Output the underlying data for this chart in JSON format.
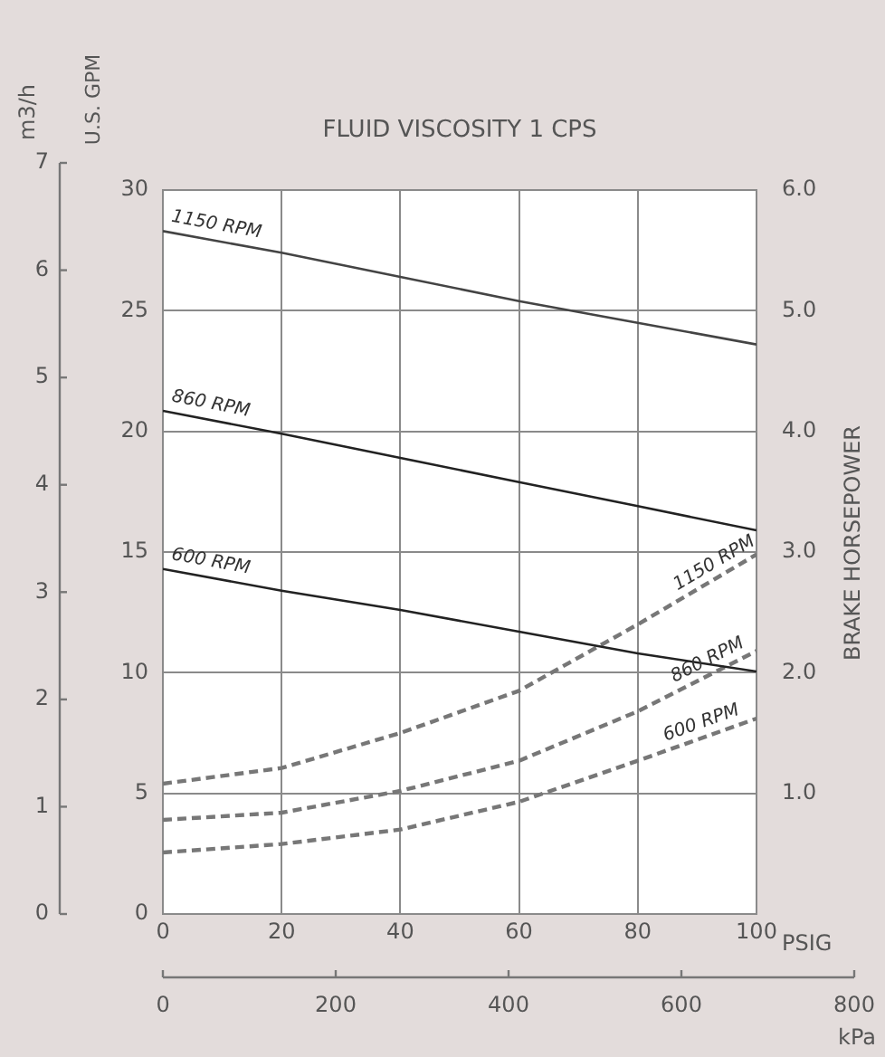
{
  "chart_data": {
    "type": "line",
    "title": "FLUID VISCOSITY 1 CPS",
    "xlabel": "PSIG",
    "ylabel": "U.S. GPM",
    "y2label": "BRAKE HORSEPOWER",
    "y3label": "m3/h",
    "x2label": "kPa",
    "x": [
      0,
      20,
      40,
      60,
      80,
      100
    ],
    "series": [
      {
        "name": "1150 RPM",
        "color": "#444444",
        "values": [
          28.3,
          27.4,
          26.4,
          25.4,
          24.5,
          23.6
        ],
        "line_style": "solid"
      },
      {
        "name": "860 RPM",
        "color": "#222222",
        "values": [
          20.85,
          19.9,
          18.9,
          17.9,
          16.9,
          15.9
        ],
        "line_style": "solid"
      },
      {
        "name": "600 RPM",
        "color": "#222222",
        "values": [
          14.3,
          13.4,
          12.6,
          11.7,
          10.8,
          10.05
        ],
        "line_style": "solid"
      },
      {
        "name": "1150 RPM",
        "color": "#777777",
        "values": [
          1.08,
          1.21,
          1.5,
          1.85,
          2.4,
          2.98
        ],
        "axis": "y2",
        "line_style": "dashed"
      },
      {
        "name": "860 RPM",
        "color": "#777777",
        "values": [
          0.78,
          0.84,
          1.02,
          1.27,
          1.68,
          2.18
        ],
        "axis": "y2",
        "line_style": "dashed"
      },
      {
        "name": "600 RPM",
        "color": "#777777",
        "values": [
          0.51,
          0.58,
          0.7,
          0.93,
          1.27,
          1.62
        ],
        "axis": "y2",
        "line_style": "dashed"
      }
    ],
    "xlim": [
      0,
      100
    ],
    "xticks": [
      0,
      20,
      40,
      60,
      80,
      100
    ],
    "ylim": [
      0,
      30
    ],
    "yticks": [
      0,
      5,
      10,
      15,
      20,
      25,
      30
    ],
    "y2lim": [
      0,
      6
    ],
    "y2ticks": [
      {
        "value": 0,
        "label": null
      },
      {
        "value": 1,
        "label": "1.0"
      },
      {
        "value": 2,
        "label": "2.0"
      },
      {
        "value": 3,
        "label": "3.0"
      },
      {
        "value": 4,
        "label": "4.0"
      },
      {
        "value": 5,
        "label": "5.0"
      },
      {
        "value": 6,
        "label": "6.0"
      }
    ],
    "y3lim": [
      0,
      7
    ],
    "y3ticks": [
      0,
      1,
      2,
      3,
      4,
      5,
      6,
      7
    ],
    "x2lim": [
      0,
      800
    ],
    "x2ticks": [
      0,
      200,
      400,
      600,
      800
    ],
    "grid": true,
    "marker": "none"
  }
}
